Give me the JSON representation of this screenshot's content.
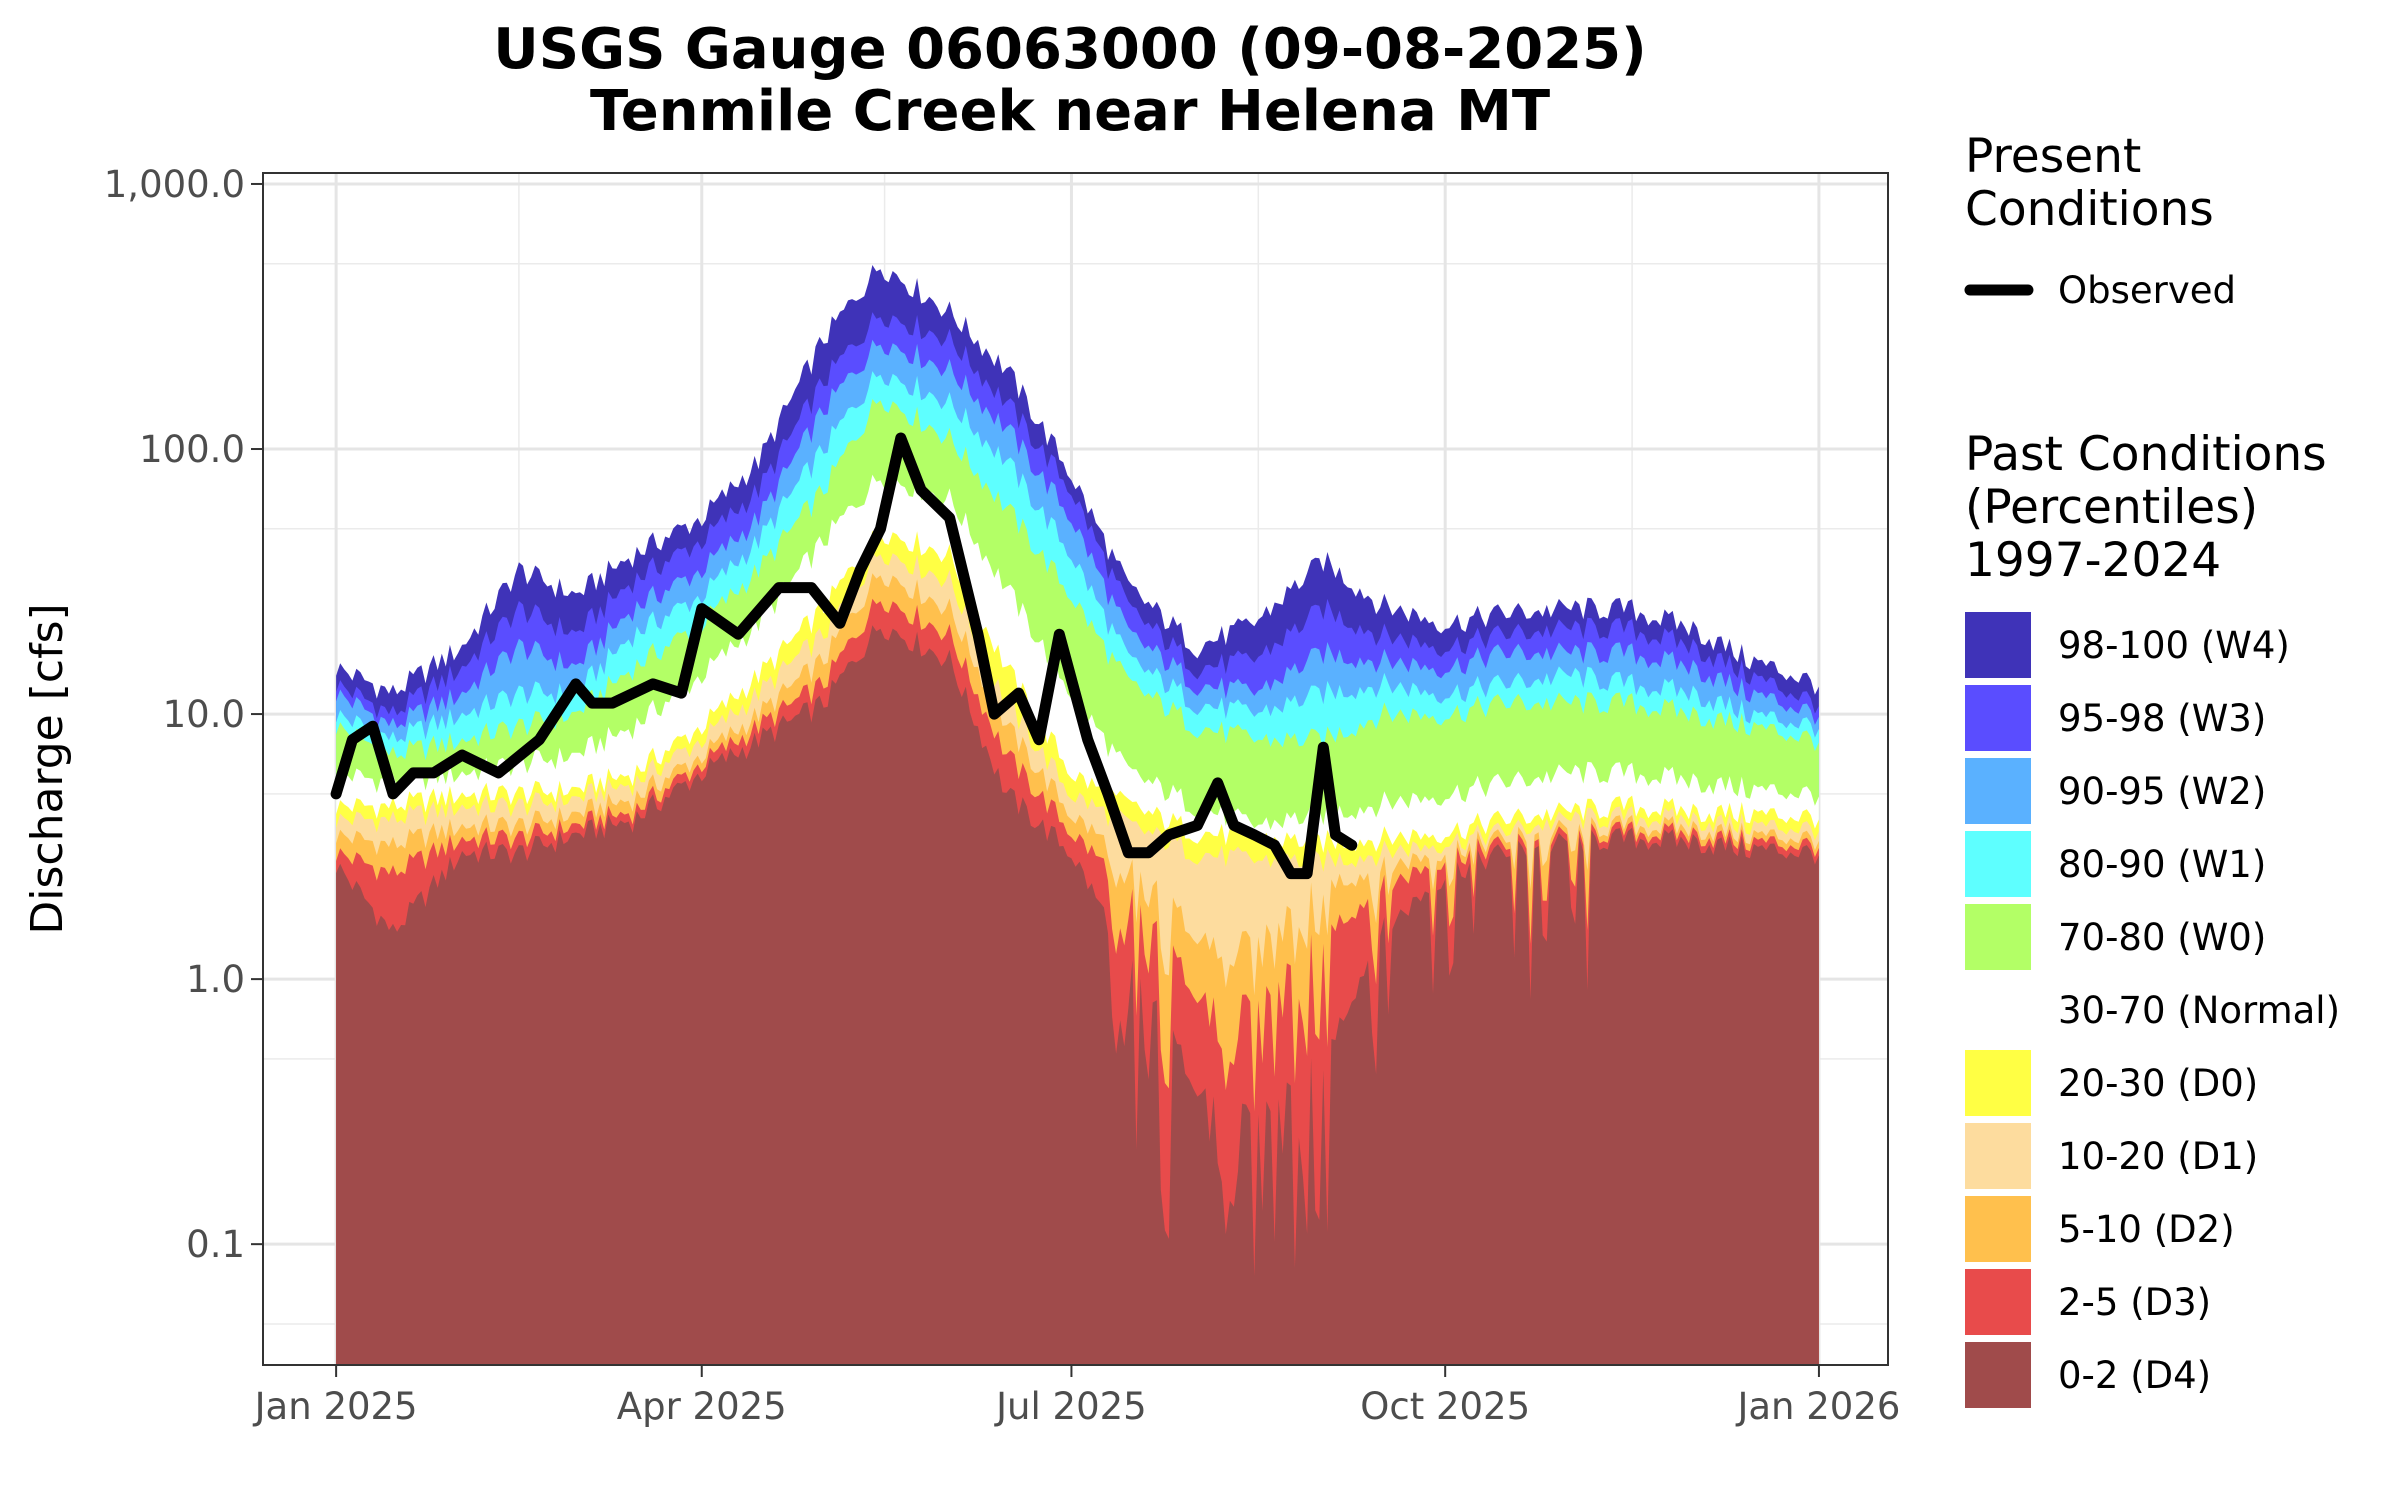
{
  "chart_data": {
    "type": "area",
    "title": "USGS Gauge 06063000 (09-08-2025)",
    "subtitle": "Tenmile Creek near Helena MT",
    "ylabel": "Discharge [cfs]",
    "xlabel": "",
    "y_scale": "log",
    "ylim": [
      0.035,
      1100
    ],
    "xlim": [
      "2024-12-14",
      "2026-01-18"
    ],
    "y_ticks": [
      0.1,
      1,
      10,
      100,
      1000
    ],
    "y_tick_labels": [
      "0.1",
      "1.0",
      "10.0",
      "100.0",
      "1,000.0"
    ],
    "x_ticks": [
      "2025-01-01",
      "2025-04-01",
      "2025-07-01",
      "2025-10-01",
      "2026-01-01"
    ],
    "x_tick_labels": [
      "Jan 2025",
      "Apr 2025",
      "Jul 2025",
      "Oct 2025",
      "Jan 2026"
    ],
    "grid": true,
    "legend_position": "right",
    "percentile_dates": [
      "2025-01-01",
      "2025-01-15",
      "2025-02-01",
      "2025-02-15",
      "2025-03-01",
      "2025-03-15",
      "2025-04-01",
      "2025-04-15",
      "2025-05-01",
      "2025-05-15",
      "2025-06-01",
      "2025-06-15",
      "2025-07-01",
      "2025-07-15",
      "2025-08-01",
      "2025-08-15",
      "2025-09-01",
      "2025-09-15",
      "2025-10-01",
      "2025-10-15",
      "2025-11-01",
      "2025-11-15",
      "2025-12-01",
      "2025-12-15",
      "2026-01-01"
    ],
    "bands": [
      {
        "name": "98-100 (W4)",
        "color": "#3f33b8",
        "values": [
          15,
          12,
          18,
          35,
          28,
          40,
          55,
          90,
          260,
          500,
          330,
          200,
          80,
          30,
          18,
          22,
          38,
          26,
          22,
          24,
          25,
          25,
          21,
          16,
          13
        ]
      },
      {
        "name": "95-98 (W3)",
        "color": "#5a4dff",
        "values": [
          13,
          10,
          15,
          25,
          20,
          32,
          45,
          70,
          180,
          330,
          260,
          150,
          70,
          25,
          15,
          16,
          25,
          20,
          18,
          20,
          21,
          21,
          18,
          14,
          11
        ]
      },
      {
        "name": "90-95 (W2)",
        "color": "#5ab1ff",
        "values": [
          12,
          9,
          12,
          18,
          15,
          25,
          35,
          55,
          140,
          260,
          200,
          120,
          55,
          20,
          13,
          12,
          17,
          16,
          15,
          17,
          17,
          17,
          15,
          12,
          10
        ]
      },
      {
        "name": "80-90 (W1)",
        "color": "#5effff",
        "values": [
          10,
          8,
          10,
          12,
          12,
          20,
          28,
          45,
          100,
          200,
          150,
          90,
          40,
          16,
          11,
          10,
          12,
          13,
          12,
          13,
          14,
          13,
          12,
          10,
          9
        ]
      },
      {
        "name": "70-80 (W0)",
        "color": "#b3ff66",
        "values": [
          9,
          7,
          8,
          9,
          10,
          15,
          22,
          35,
          70,
          160,
          110,
          60,
          28,
          13,
          9,
          8,
          8,
          10,
          10,
          11,
          11,
          11,
          10,
          9,
          8
        ]
      },
      {
        "name": "30-70 (Normal)",
        "color": "#ffffff",
        "values": [
          6,
          5.5,
          6,
          6.5,
          7,
          9,
          14,
          22,
          45,
          80,
          65,
          30,
          12,
          6,
          4.5,
          3.8,
          4.2,
          4.6,
          5,
          5.5,
          6,
          6,
          5.6,
          5.2,
          5
        ]
      },
      {
        "name": "20-30 (D0)",
        "color": "#ffff44",
        "values": [
          4.5,
          4.5,
          5,
          5,
          5.2,
          6,
          9,
          14,
          25,
          50,
          40,
          15,
          6,
          4.5,
          3.6,
          3.4,
          3.3,
          3.4,
          3.6,
          4,
          4.3,
          4.5,
          4.3,
          4.2,
          4.1
        ]
      },
      {
        "name": "10-20 (D1)",
        "color": "#fddc9e",
        "values": [
          4,
          4,
          4.5,
          4.5,
          4.8,
          5.5,
          8,
          12,
          20,
          42,
          32,
          11,
          5,
          3.8,
          3,
          2.8,
          2.8,
          3,
          3.3,
          3.6,
          4,
          4.1,
          4,
          3.8,
          3.7
        ]
      },
      {
        "name": "5-10 (D2)",
        "color": "#ffc04d",
        "values": [
          3.5,
          3.2,
          3.8,
          3.8,
          4.2,
          4.8,
          7,
          10,
          16,
          35,
          25,
          9,
          4.2,
          2.8,
          1.5,
          1.4,
          2.3,
          2.6,
          3.1,
          3.4,
          3.7,
          3.8,
          3.7,
          3.5,
          3.4
        ]
      },
      {
        "name": "2-5 (D3)",
        "color": "#e84b4b",
        "values": [
          3,
          2.5,
          3.4,
          3.4,
          3.8,
          4.3,
          6.5,
          9,
          13,
          28,
          20,
          7,
          3.6,
          2.2,
          0.9,
          0.8,
          1.5,
          2.2,
          2.9,
          3.2,
          3.5,
          3.6,
          3.5,
          3.3,
          3.2
        ]
      },
      {
        "name": "0-2 (D4)",
        "color": "#a04b4b",
        "values": [
          2.7,
          1.5,
          3,
          3,
          3.5,
          4,
          6,
          8,
          11,
          22,
          16,
          5,
          3,
          1.2,
          0.4,
          0.3,
          0.5,
          1.5,
          2.5,
          3,
          3.3,
          3.4,
          3.3,
          3.1,
          3
        ]
      }
    ],
    "series": [
      {
        "name": "Observed",
        "color": "#000000",
        "x": [
          "2025-01-01",
          "2025-01-05",
          "2025-01-10",
          "2025-01-15",
          "2025-01-20",
          "2025-01-25",
          "2025-02-01",
          "2025-02-10",
          "2025-02-20",
          "2025-03-01",
          "2025-03-05",
          "2025-03-10",
          "2025-03-20",
          "2025-03-27",
          "2025-04-01",
          "2025-04-10",
          "2025-04-20",
          "2025-04-28",
          "2025-05-05",
          "2025-05-10",
          "2025-05-15",
          "2025-05-20",
          "2025-05-25",
          "2025-06-01",
          "2025-06-08",
          "2025-06-12",
          "2025-06-18",
          "2025-06-23",
          "2025-06-28",
          "2025-07-05",
          "2025-07-10",
          "2025-07-15",
          "2025-07-20",
          "2025-07-25",
          "2025-08-01",
          "2025-08-06",
          "2025-08-10",
          "2025-08-15",
          "2025-08-20",
          "2025-08-24",
          "2025-08-28",
          "2025-09-01",
          "2025-09-04",
          "2025-09-08"
        ],
        "values": [
          5,
          8,
          9,
          5,
          6,
          6,
          7,
          6,
          8,
          13,
          11,
          11,
          13,
          12,
          25,
          20,
          30,
          30,
          22,
          35,
          50,
          110,
          70,
          55,
          20,
          10,
          12,
          8,
          20,
          8,
          5,
          3,
          3,
          3.5,
          3.8,
          5.5,
          3.8,
          3.5,
          3.2,
          2.5,
          2.5,
          7.5,
          3.5,
          3.2
        ]
      }
    ]
  },
  "legend": {
    "present_title_1": "Present",
    "present_title_2": "Conditions",
    "observed_label": "Observed",
    "past_title_1": "Past Conditions",
    "past_title_2": "(Percentiles)",
    "past_title_3": "1997-2024"
  }
}
